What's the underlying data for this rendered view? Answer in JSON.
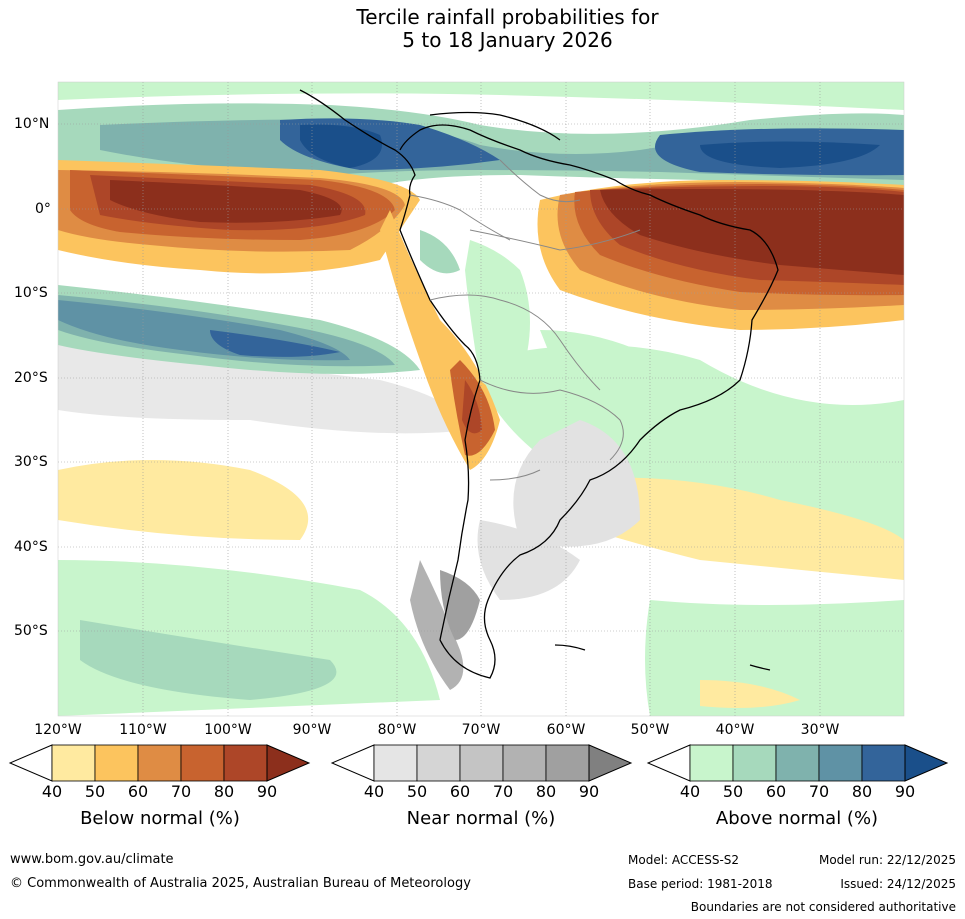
{
  "title": {
    "line1": "Tercile rainfall probabilities for",
    "line2": "5 to 18 January 2026"
  },
  "map": {
    "lon_labels": [
      "120°W",
      "110°W",
      "100°W",
      "90°W",
      "80°W",
      "70°W",
      "60°W",
      "50°W",
      "40°W",
      "30°W"
    ],
    "lat_labels": [
      "10°N",
      "0°",
      "10°S",
      "20°S",
      "30°S",
      "40°S",
      "50°S"
    ]
  },
  "colorbars": [
    {
      "name": "below",
      "title": "Below normal (%)",
      "ticks": [
        "40",
        "50",
        "60",
        "70",
        "80",
        "90"
      ],
      "colors": [
        "#ffffff",
        "#ffeaa0",
        "#fcc45e",
        "#df8c44",
        "#c8632f",
        "#ad4628",
        "#8c2f1c"
      ]
    },
    {
      "name": "near",
      "title": "Near normal (%)",
      "ticks": [
        "40",
        "50",
        "60",
        "70",
        "80",
        "90"
      ],
      "colors": [
        "#ffffff",
        "#e5e5e5",
        "#d5d5d5",
        "#c4c4c4",
        "#b2b2b2",
        "#a0a0a0",
        "#808080"
      ]
    },
    {
      "name": "above",
      "title": "Above normal (%)",
      "ticks": [
        "40",
        "50",
        "60",
        "70",
        "80",
        "90"
      ],
      "colors": [
        "#ffffff",
        "#c8f5cc",
        "#a6d9bc",
        "#7fb2ad",
        "#5f92a5",
        "#33649a",
        "#1a4f8a"
      ]
    }
  ],
  "footer": {
    "website": "www.bom.gov.au/climate",
    "copyright": "© Commonwealth of Australia 2025, Australian Bureau of Meteorology",
    "model": "Model: ACCESS-S2",
    "model_run": "Model run: 22/12/2025",
    "base_period": "Base period: 1981-2018",
    "issued": "Issued: 24/12/2025",
    "disclaimer": "Boundaries are not considered authoritative"
  }
}
